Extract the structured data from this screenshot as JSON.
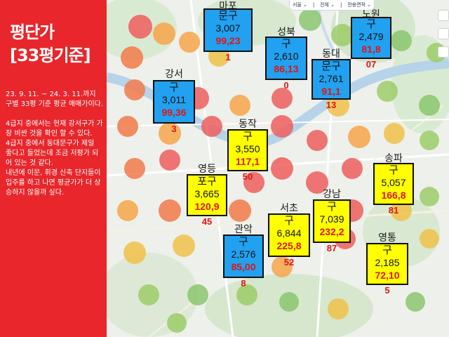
{
  "sidebar": {
    "title_line1": "평단가",
    "title_line2": "[33평기준]",
    "desc_lines": [
      "23. 9. 11. ~ 24. 3. 11.까지",
      "구별 33평 기준 평균 매매가이다.",
      "",
      "4급지 중에서는 현재 강서구가 가장 비싼 것을 확인 할 수 있다.",
      "4급지 중에서 동대문구가 제일",
      "좋다고 들었는데 조금 저평가 되어 있는 것 같다.",
      "내년에 이문, 휘경 신축 단지들이 입주를 하고 나면 평균가가 더 상승하지 않을까 싶다."
    ]
  },
  "map": {
    "topbar": [
      "서울 ⌄",
      "|",
      "전체 ⌄",
      "|",
      "전용면적 ⌄"
    ],
    "districts": [
      {
        "name": "마포",
        "head": "문구",
        "price": "3,007",
        "value": "99,23",
        "tail": "1",
        "color": "blue"
      },
      {
        "name": "성북",
        "head": "구",
        "price": "2,610",
        "value": "86,13",
        "tail": "0",
        "color": "blue"
      },
      {
        "name": "동대",
        "head": "문구",
        "price": "2,761",
        "value": "91,1",
        "tail": "13",
        "color": "blue"
      },
      {
        "name": "노원",
        "head": "구",
        "price": "2,479",
        "value": "81,8",
        "tail": "07",
        "color": "blue"
      },
      {
        "name": "강서",
        "head": "구",
        "price": "3,011",
        "value": "99,36",
        "tail": "3",
        "color": "blue"
      },
      {
        "name": "동작",
        "head": "구",
        "price": "3,550",
        "value": "117,1",
        "tail": "50",
        "color": "yellow"
      },
      {
        "name": "영등",
        "head": "포구",
        "price": "3,665",
        "value": "120,9",
        "tail": "45",
        "color": "yellow"
      },
      {
        "name": "송파",
        "head": "구",
        "price": "5,057",
        "value": "166,8",
        "tail": "81",
        "color": "yellow"
      },
      {
        "name": "강남",
        "head": "구",
        "price": "7,039",
        "value": "232,2",
        "tail": "87",
        "color": "yellow"
      },
      {
        "name": "서초",
        "head": "구",
        "price": "6,844",
        "value": "225,8",
        "tail": "52",
        "color": "yellow"
      },
      {
        "name": "관악",
        "head": "구",
        "price": "2,576",
        "value": "85,00",
        "tail": "8",
        "color": "blue"
      },
      {
        "name": "영통",
        "head": "구",
        "price": "2,185",
        "value": "72,10",
        "tail": "5",
        "color": "yellow"
      }
    ],
    "colors": {
      "sidebar_bg": "#e8262b",
      "blue_box": "#21a1f0",
      "yellow_box": "#ffff00",
      "value_red": "#e01515"
    }
  }
}
